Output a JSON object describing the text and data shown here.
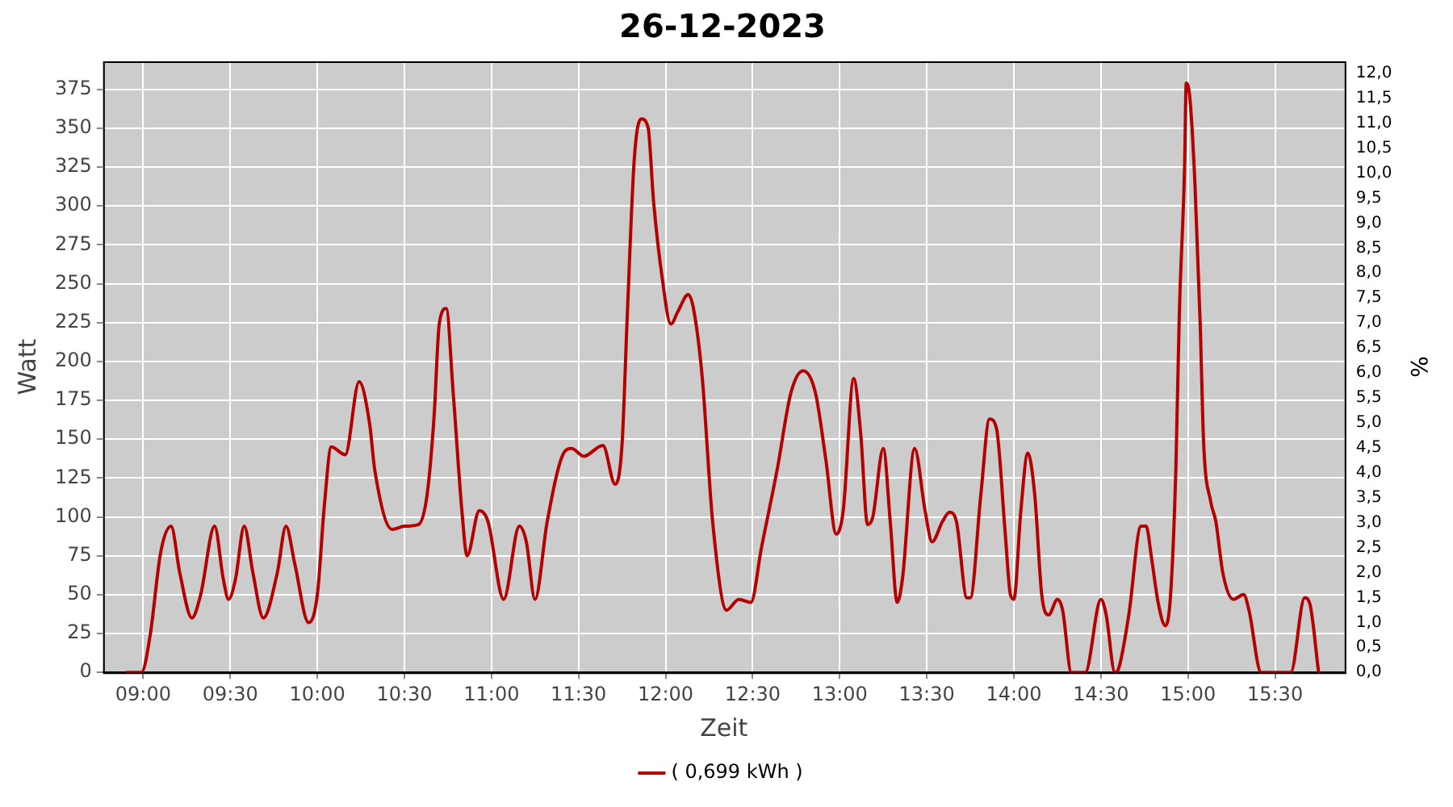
{
  "chart_data": {
    "type": "line",
    "title": "26-12-2023",
    "xlabel": "Zeit",
    "ylabel": "Watt",
    "y2label": "%",
    "x": [
      8.9,
      8.99,
      9.04,
      9.1,
      9.16,
      9.21,
      9.28,
      9.33,
      9.41,
      9.46,
      9.49,
      9.53,
      9.58,
      9.63,
      9.69,
      9.77,
      9.82,
      9.87,
      9.95,
      10.0,
      10.04,
      10.08,
      10.16,
      10.24,
      10.3,
      10.33,
      10.43,
      10.5,
      10.58,
      10.63,
      10.67,
      10.7,
      10.74,
      10.78,
      10.83,
      10.86,
      10.93,
      10.98,
      11.07,
      11.16,
      11.2,
      11.25,
      11.32,
      11.41,
      11.46,
      11.53,
      11.64,
      11.71,
      11.75,
      11.78,
      11.82,
      11.86,
      11.9,
      11.93,
      11.98,
      12.03,
      12.07,
      12.13,
      12.16,
      12.21,
      12.27,
      12.35,
      12.42,
      12.49,
      12.55,
      12.64,
      12.72,
      12.79,
      12.86,
      12.92,
      12.98,
      13.02,
      13.08,
      13.12,
      13.16,
      13.19,
      13.25,
      13.29,
      13.33,
      13.36,
      13.43,
      13.49,
      13.53,
      13.59,
      13.63,
      13.67,
      13.73,
      13.75,
      13.81,
      13.86,
      13.9,
      13.95,
      13.98,
      14.0,
      14.04,
      14.08,
      14.12,
      14.16,
      14.2,
      14.25,
      14.28,
      14.33,
      14.41,
      14.5,
      14.53,
      14.58,
      14.6,
      14.66,
      14.73,
      14.76,
      14.79,
      14.83,
      14.87,
      14.9,
      14.93,
      14.95,
      14.98,
      14.99,
      15.01,
      15.04,
      15.07,
      15.09,
      15.13,
      15.16,
      15.2,
      15.26,
      15.32,
      15.35,
      15.42,
      15.59,
      15.67,
      15.7,
      15.75
    ],
    "series": [
      {
        "name": "( 0,699 kWh )",
        "color": "#b40000",
        "values": [
          0,
          0,
          24,
          77,
          94,
          64,
          35,
          50,
          94,
          60,
          47,
          60,
          94,
          64,
          35,
          64,
          94,
          70,
          32,
          50,
          107,
          145,
          140,
          187,
          160,
          130,
          92,
          94,
          95,
          114,
          164,
          224,
          234,
          180,
          104,
          75,
          104,
          97,
          47,
          94,
          84,
          47,
          97,
          140,
          144,
          139,
          146,
          121,
          147,
          230,
          330,
          356,
          350,
          304,
          254,
          224,
          232,
          243,
          234,
          190,
          97,
          40,
          47,
          45,
          80,
          130,
          180,
          194,
          180,
          137,
          89,
          104,
          189,
          154,
          95,
          100,
          144,
          97,
          45,
          60,
          144,
          104,
          84,
          97,
          103,
          97,
          48,
          48,
          114,
          163,
          157,
          90,
          50,
          47,
          104,
          141,
          114,
          50,
          37,
          47,
          40,
          0,
          0,
          47,
          37,
          0,
          2,
          37,
          94,
          94,
          74,
          44,
          30,
          50,
          130,
          230,
          324,
          379,
          370,
          314,
          224,
          147,
          110,
          97,
          64,
          47,
          50,
          40,
          0,
          0,
          48,
          44,
          0
        ]
      }
    ],
    "xlim": [
      8.77,
      15.9
    ],
    "xticks": [
      {
        "value": 9,
        "label": "09:00"
      },
      {
        "value": 9.5,
        "label": "09:30"
      },
      {
        "value": 10,
        "label": "10:00"
      },
      {
        "value": 10.5,
        "label": "10:30"
      },
      {
        "value": 11,
        "label": "11:00"
      },
      {
        "value": 11.5,
        "label": "11:30"
      },
      {
        "value": 12,
        "label": "12:00"
      },
      {
        "value": 12.5,
        "label": "12:30"
      },
      {
        "value": 13,
        "label": "13:00"
      },
      {
        "value": 13.5,
        "label": "13:30"
      },
      {
        "value": 14,
        "label": "14:00"
      },
      {
        "value": 14.5,
        "label": "14:30"
      },
      {
        "value": 15,
        "label": "15:00"
      },
      {
        "value": 15.5,
        "label": "15:30"
      }
    ],
    "ylim": [
      0,
      393
    ],
    "yticks": [
      0,
      25,
      50,
      75,
      100,
      125,
      150,
      175,
      200,
      225,
      250,
      275,
      300,
      325,
      350,
      375
    ],
    "y2lim": [
      0,
      12.24
    ],
    "y2ticks": [
      {
        "value": 0,
        "label": "0,0"
      },
      {
        "value": 0.5,
        "label": "0,5"
      },
      {
        "value": 1,
        "label": "1,0"
      },
      {
        "value": 1.5,
        "label": "1,5"
      },
      {
        "value": 2,
        "label": "2,0"
      },
      {
        "value": 2.5,
        "label": "2,5"
      },
      {
        "value": 3,
        "label": "3,0"
      },
      {
        "value": 3.5,
        "label": "3,5"
      },
      {
        "value": 4,
        "label": "4,0"
      },
      {
        "value": 4.5,
        "label": "4,5"
      },
      {
        "value": 5,
        "label": "5,0"
      },
      {
        "value": 5.5,
        "label": "5,5"
      },
      {
        "value": 6,
        "label": "6,0"
      },
      {
        "value": 6.5,
        "label": "6,5"
      },
      {
        "value": 7,
        "label": "7,0"
      },
      {
        "value": 7.5,
        "label": "7,5"
      },
      {
        "value": 8,
        "label": "8,0"
      },
      {
        "value": 8.5,
        "label": "8,5"
      },
      {
        "value": 9,
        "label": "9,0"
      },
      {
        "value": 9.5,
        "label": "9,5"
      },
      {
        "value": 10,
        "label": "10,0"
      },
      {
        "value": 10.5,
        "label": "10,5"
      },
      {
        "value": 11,
        "label": "11,0"
      },
      {
        "value": 11.5,
        "label": "11,5"
      },
      {
        "value": 12,
        "label": "12,0"
      }
    ],
    "grid": true,
    "legend": "bottom",
    "marker": "none",
    "line_style": "solid"
  }
}
